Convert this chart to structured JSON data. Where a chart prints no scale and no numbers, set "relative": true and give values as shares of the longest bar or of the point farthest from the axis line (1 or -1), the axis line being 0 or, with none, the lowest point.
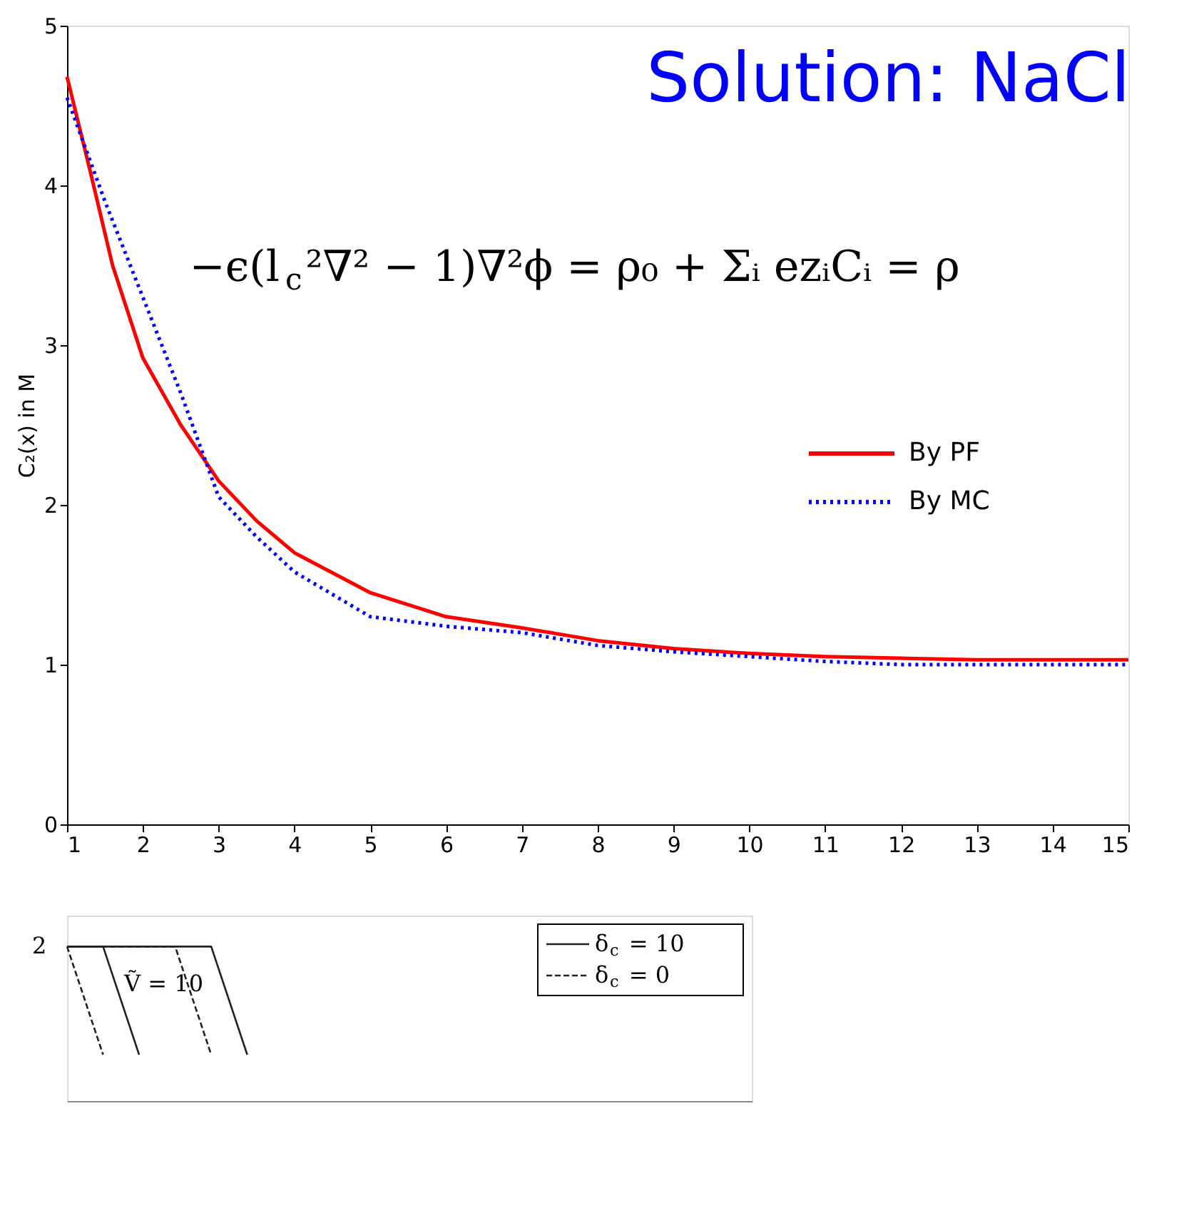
{
  "chart_data": [
    {
      "type": "line",
      "title": "Solution: NaCl",
      "ylabel": "C₂(x) in M",
      "annotations": [
        "−ϵ(l$_{c}$²∇² − 1)∇²ϕ = ρ₀ + Σᵢ ezᵢCᵢ = ρ"
      ],
      "series": [
        {
          "name": "By PF",
          "color": "#ff0000",
          "line_style": "solid",
          "x": [
            1,
            1.3,
            1.6,
            2,
            2.5,
            3,
            3.5,
            4,
            5,
            6,
            7,
            8,
            9,
            10,
            11,
            12,
            13,
            15
          ],
          "values": [
            4.68,
            4.1,
            3.5,
            2.92,
            2.5,
            2.15,
            1.9,
            1.7,
            1.45,
            1.3,
            1.23,
            1.15,
            1.1,
            1.07,
            1.05,
            1.04,
            1.03,
            1.03
          ]
        },
        {
          "name": "By MC",
          "color": "#0000ff",
          "line_style": "dotted",
          "x": [
            1,
            1.5,
            2,
            2.5,
            3,
            3.5,
            4,
            5,
            6,
            7,
            8,
            9,
            10,
            11,
            12,
            13,
            15
          ],
          "values": [
            4.55,
            3.9,
            3.3,
            2.7,
            2.05,
            1.8,
            1.58,
            1.3,
            1.24,
            1.2,
            1.12,
            1.08,
            1.05,
            1.02,
            1.0,
            1.0,
            1.0
          ]
        }
      ],
      "xlim": [
        1,
        15
      ],
      "xticks": [
        1,
        2,
        3,
        4,
        5,
        6,
        7,
        8,
        9,
        10,
        11,
        12,
        13,
        14,
        15
      ],
      "ylim": [
        0,
        5
      ],
      "yticks": [
        0,
        1,
        2,
        3,
        4,
        5
      ],
      "grid": false,
      "legend": "right"
    },
    {
      "type": "line",
      "relative": true,
      "annotations": [
        "Ṽ = 10",
        "2"
      ],
      "categories": [
        null,
        null,
        null,
        null,
        null,
        null,
        null,
        null,
        null,
        null,
        null,
        null,
        null,
        null,
        null,
        null,
        null,
        null,
        null,
        null
      ],
      "series": [
        {
          "name": "δ$_{c}$ = 10",
          "color": "#222222",
          "line_style": "solid",
          "values": [
            1,
            1,
            0.3,
            null,
            null,
            null,
            null,
            null,
            null,
            null,
            null,
            null,
            null,
            null,
            null,
            null,
            null,
            null,
            null,
            null
          ]
        },
        {
          "name": "δ$_{c}$ = 0",
          "color": "#222222",
          "line_style": "dashed",
          "values": [
            1,
            0.3,
            null,
            null,
            null,
            null,
            null,
            null,
            null,
            null,
            null,
            null,
            null,
            null,
            null,
            null,
            null,
            null,
            null,
            null
          ]
        },
        {
          "color": "#222222",
          "line_style": "solid",
          "values": [
            1,
            1,
            1,
            1,
            1,
            0.3,
            null,
            null,
            null,
            null,
            null,
            null,
            null,
            null,
            null,
            null,
            null,
            null,
            null,
            null
          ]
        },
        {
          "color": "#222222",
          "line_style": "dashed",
          "values": [
            1,
            1,
            1,
            1,
            0.3,
            null,
            null,
            null,
            null,
            null,
            null,
            null,
            null,
            null,
            null,
            null,
            null,
            null,
            null,
            null
          ]
        }
      ],
      "legend": "top right",
      "grid": false
    }
  ]
}
